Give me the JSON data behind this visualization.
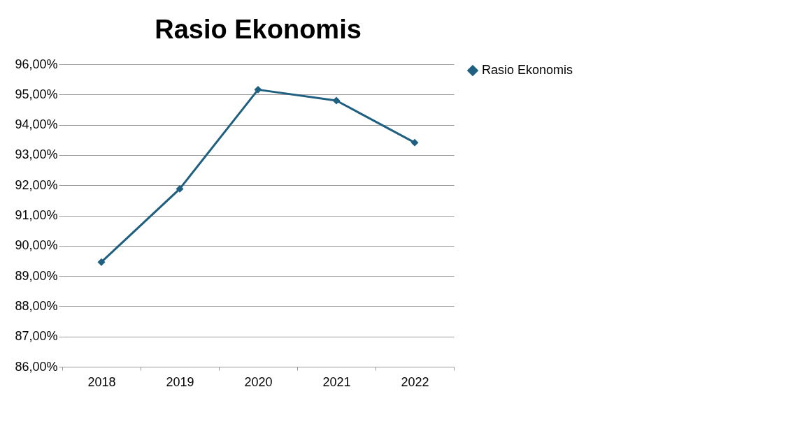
{
  "chart_data": {
    "type": "line",
    "title": "Rasio Ekonomis",
    "categories": [
      "2018",
      "2019",
      "2020",
      "2021",
      "2022"
    ],
    "series": [
      {
        "name": "Rasio Ekonomis",
        "color": "#1f5f80",
        "values": [
          89.46,
          91.88,
          95.16,
          94.8,
          93.41
        ]
      }
    ],
    "ylim": [
      86,
      96
    ],
    "yticks": [
      {
        "value": 86,
        "label": "86,00%"
      },
      {
        "value": 87,
        "label": "87,00%"
      },
      {
        "value": 88,
        "label": "88,00%"
      },
      {
        "value": 89,
        "label": "89,00%"
      },
      {
        "value": 90,
        "label": "90,00%"
      },
      {
        "value": 91,
        "label": "91,00%"
      },
      {
        "value": 92,
        "label": "92,00%"
      },
      {
        "value": 93,
        "label": "93,00%"
      },
      {
        "value": 94,
        "label": "94,00%"
      },
      {
        "value": 95,
        "label": "95,00%"
      },
      {
        "value": 96,
        "label": "96,00%"
      }
    ],
    "grid": "y",
    "legend": "right",
    "marker": "diamond",
    "line_style": "solid"
  }
}
